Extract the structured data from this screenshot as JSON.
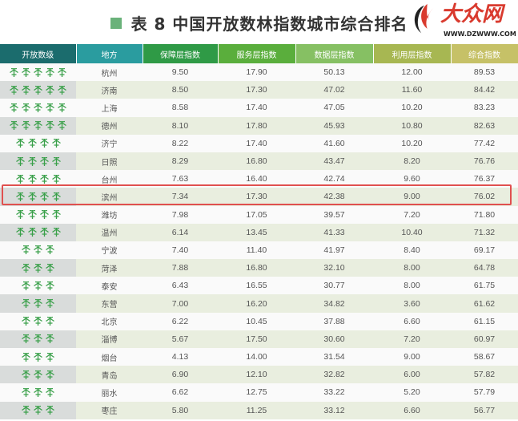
{
  "title": "表 8  中国开放数林指数城市综合排名",
  "colors": {
    "accent": "#6ab27a",
    "highlight": "#e0504f",
    "tree": "#3aa04a"
  },
  "headers": [
    {
      "label": "开放数级",
      "color": "#1b6c6d"
    },
    {
      "label": "地方",
      "color": "#2a9c9f"
    },
    {
      "label": "保障层指数",
      "color": "#2f9a46"
    },
    {
      "label": "服务层指数",
      "color": "#5aae3c"
    },
    {
      "label": "数据层指数",
      "color": "#86c063"
    },
    {
      "label": "利用层指数",
      "color": "#a7b752"
    },
    {
      "label": "综合指数",
      "color": "#c6c167"
    }
  ],
  "rows": [
    {
      "level": 5,
      "city": "杭州",
      "v": [
        "9.50",
        "17.90",
        "50.13",
        "12.00",
        "89.53"
      ]
    },
    {
      "level": 5,
      "city": "济南",
      "v": [
        "8.50",
        "17.30",
        "47.02",
        "11.60",
        "84.42"
      ]
    },
    {
      "level": 5,
      "city": "上海",
      "v": [
        "8.58",
        "17.40",
        "47.05",
        "10.20",
        "83.23"
      ]
    },
    {
      "level": 5,
      "city": "德州",
      "v": [
        "8.10",
        "17.80",
        "45.93",
        "10.80",
        "82.63"
      ]
    },
    {
      "level": 4,
      "city": "济宁",
      "v": [
        "8.22",
        "17.40",
        "41.60",
        "10.20",
        "77.42"
      ]
    },
    {
      "level": 4,
      "city": "日照",
      "v": [
        "8.29",
        "16.80",
        "43.47",
        "8.20",
        "76.76"
      ]
    },
    {
      "level": 4,
      "city": "台州",
      "v": [
        "7.63",
        "16.40",
        "42.74",
        "9.60",
        "76.37"
      ]
    },
    {
      "level": 4,
      "city": "滨州",
      "v": [
        "7.34",
        "17.30",
        "42.38",
        "9.00",
        "76.02"
      ],
      "highlighted": true
    },
    {
      "level": 4,
      "city": "潍坊",
      "v": [
        "7.98",
        "17.05",
        "39.57",
        "7.20",
        "71.80"
      ]
    },
    {
      "level": 4,
      "city": "温州",
      "v": [
        "6.14",
        "13.45",
        "41.33",
        "10.40",
        "71.32"
      ]
    },
    {
      "level": 3,
      "city": "宁波",
      "v": [
        "7.40",
        "11.40",
        "41.97",
        "8.40",
        "69.17"
      ]
    },
    {
      "level": 3,
      "city": "菏泽",
      "v": [
        "7.88",
        "16.80",
        "32.10",
        "8.00",
        "64.78"
      ]
    },
    {
      "level": 3,
      "city": "泰安",
      "v": [
        "6.43",
        "16.55",
        "30.77",
        "8.00",
        "61.75"
      ]
    },
    {
      "level": 3,
      "city": "东营",
      "v": [
        "7.00",
        "16.20",
        "34.82",
        "3.60",
        "61.62"
      ]
    },
    {
      "level": 3,
      "city": "北京",
      "v": [
        "6.22",
        "10.45",
        "37.88",
        "6.60",
        "61.15"
      ]
    },
    {
      "level": 3,
      "city": "淄博",
      "v": [
        "5.67",
        "17.50",
        "30.60",
        "7.20",
        "60.97"
      ]
    },
    {
      "level": 3,
      "city": "烟台",
      "v": [
        "4.13",
        "14.00",
        "31.54",
        "9.00",
        "58.67"
      ]
    },
    {
      "level": 3,
      "city": "青岛",
      "v": [
        "6.90",
        "12.10",
        "32.82",
        "6.00",
        "57.82"
      ]
    },
    {
      "level": 3,
      "city": "丽水",
      "v": [
        "6.62",
        "12.75",
        "33.22",
        "5.20",
        "57.79"
      ]
    },
    {
      "level": 3,
      "city": "枣庄",
      "v": [
        "5.80",
        "11.25",
        "33.12",
        "6.60",
        "56.77"
      ]
    }
  ],
  "watermark": {
    "logo_text": "大众网",
    "url": "WWW.DZWWW.COM"
  }
}
